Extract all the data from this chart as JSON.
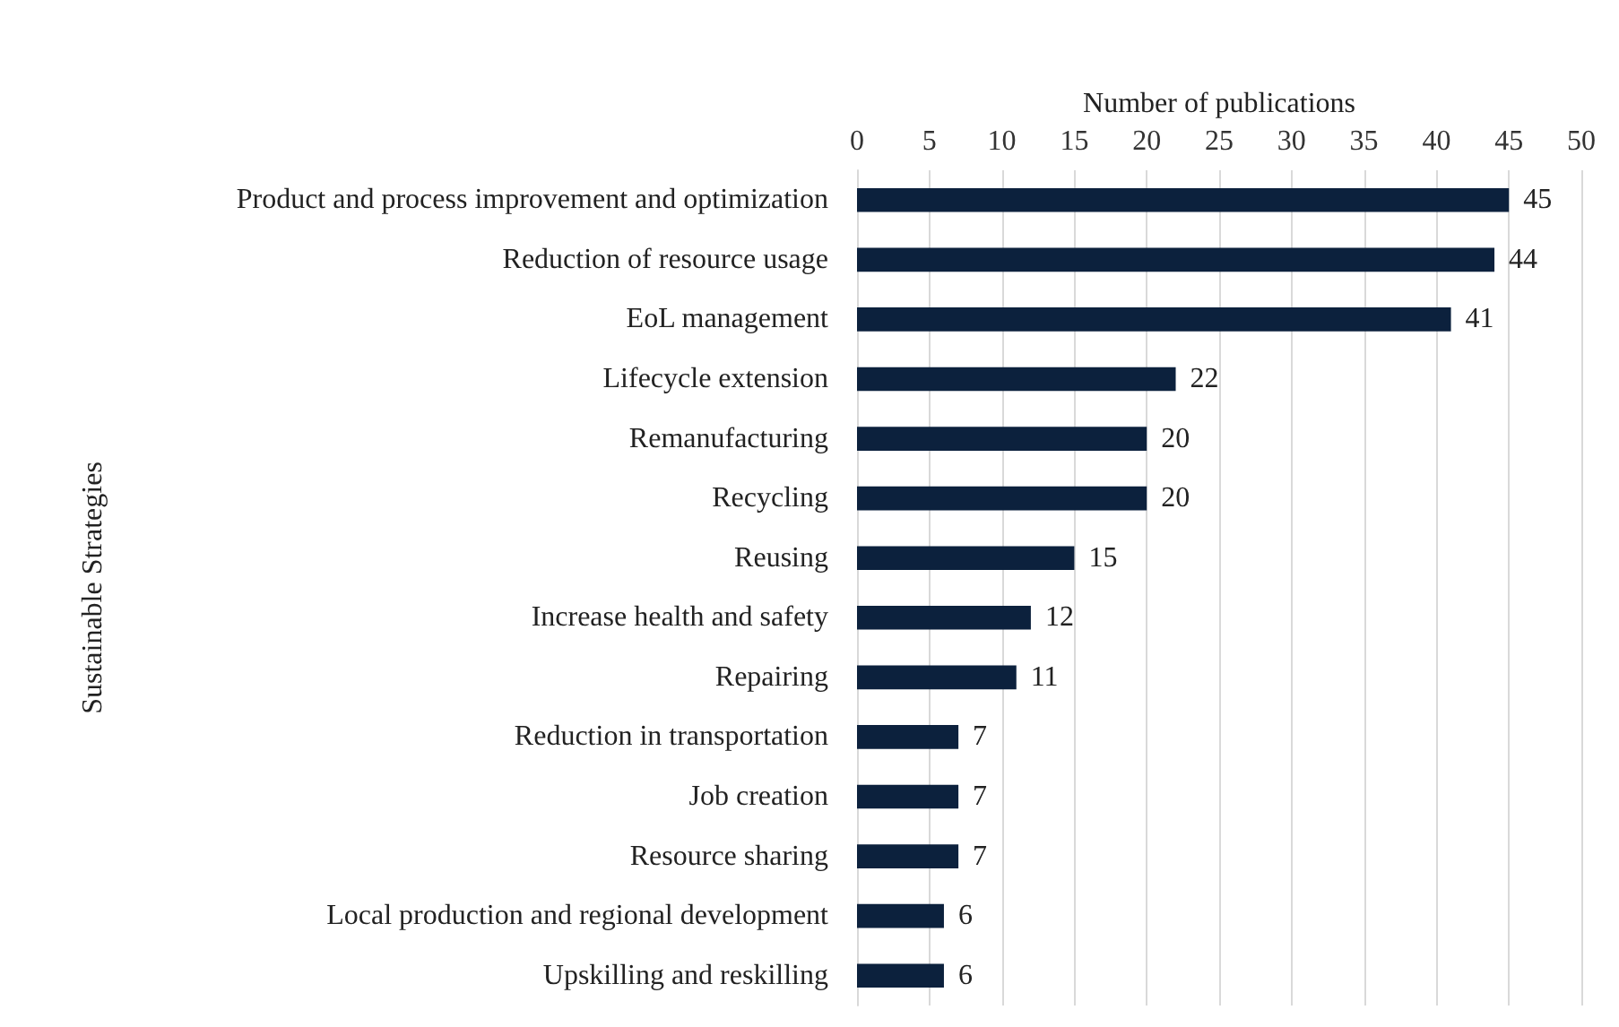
{
  "chart_data": {
    "type": "bar",
    "orientation": "horizontal",
    "xlabel": "Number of publications",
    "ylabel": "Sustainable Strategies",
    "categories": [
      "Product and process improvement and optimization",
      "Reduction of resource usage",
      "EoL management",
      "Lifecycle extension",
      "Remanufacturing",
      "Recycling",
      "Reusing",
      "Increase health and safety",
      "Repairing",
      "Reduction in transportation",
      "Job creation",
      "Resource sharing",
      "Local production and regional development",
      "Upskilling and reskilling"
    ],
    "values": [
      45,
      44,
      41,
      22,
      20,
      20,
      15,
      12,
      11,
      7,
      7,
      7,
      6,
      6
    ],
    "color": "#0c213d",
    "xlim": [
      0,
      50
    ],
    "xticks": [
      0,
      5,
      10,
      15,
      20,
      25,
      30,
      35,
      40,
      45,
      50
    ],
    "grid": "x",
    "data_labels": true
  }
}
